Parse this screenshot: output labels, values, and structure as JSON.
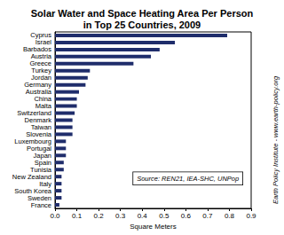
{
  "chart_data": {
    "type": "bar",
    "orientation": "horizontal",
    "title": "Solar Water and Space Heating Area Per Person\nin Top 25 Countries, 2009",
    "x_label": "Square Meters",
    "categories": [
      "Cyprus",
      "Israel",
      "Barbados",
      "Austria",
      "Greece",
      "Turkey",
      "Jordan",
      "Germany",
      "Australia",
      "China",
      "Malta",
      "Switzerland",
      "Denmark",
      "Taiwan",
      "Slovenia",
      "Luxembourg",
      "Portugal",
      "Japan",
      "Spain",
      "Tunisia",
      "New Zealand",
      "Italy",
      "South Korea",
      "Sweden",
      "France"
    ],
    "values": [
      0.79,
      0.55,
      0.48,
      0.44,
      0.36,
      0.16,
      0.15,
      0.14,
      0.11,
      0.1,
      0.1,
      0.09,
      0.08,
      0.08,
      0.08,
      0.05,
      0.05,
      0.05,
      0.04,
      0.04,
      0.03,
      0.03,
      0.03,
      0.03,
      0.02
    ],
    "color": "#1f2d6b",
    "xlim": [
      0,
      0.9
    ],
    "xticks": [
      {
        "value": 0,
        "label": "0.0"
      },
      0.1,
      0.2,
      0.3,
      0.4,
      0.5,
      0.6,
      0.7,
      0.8,
      0.9
    ],
    "grid": false,
    "annotations": [
      "Source: REN21, IEA-SHC, UNPop",
      "Earth Policy Institute - www.earth-policy.org"
    ]
  }
}
